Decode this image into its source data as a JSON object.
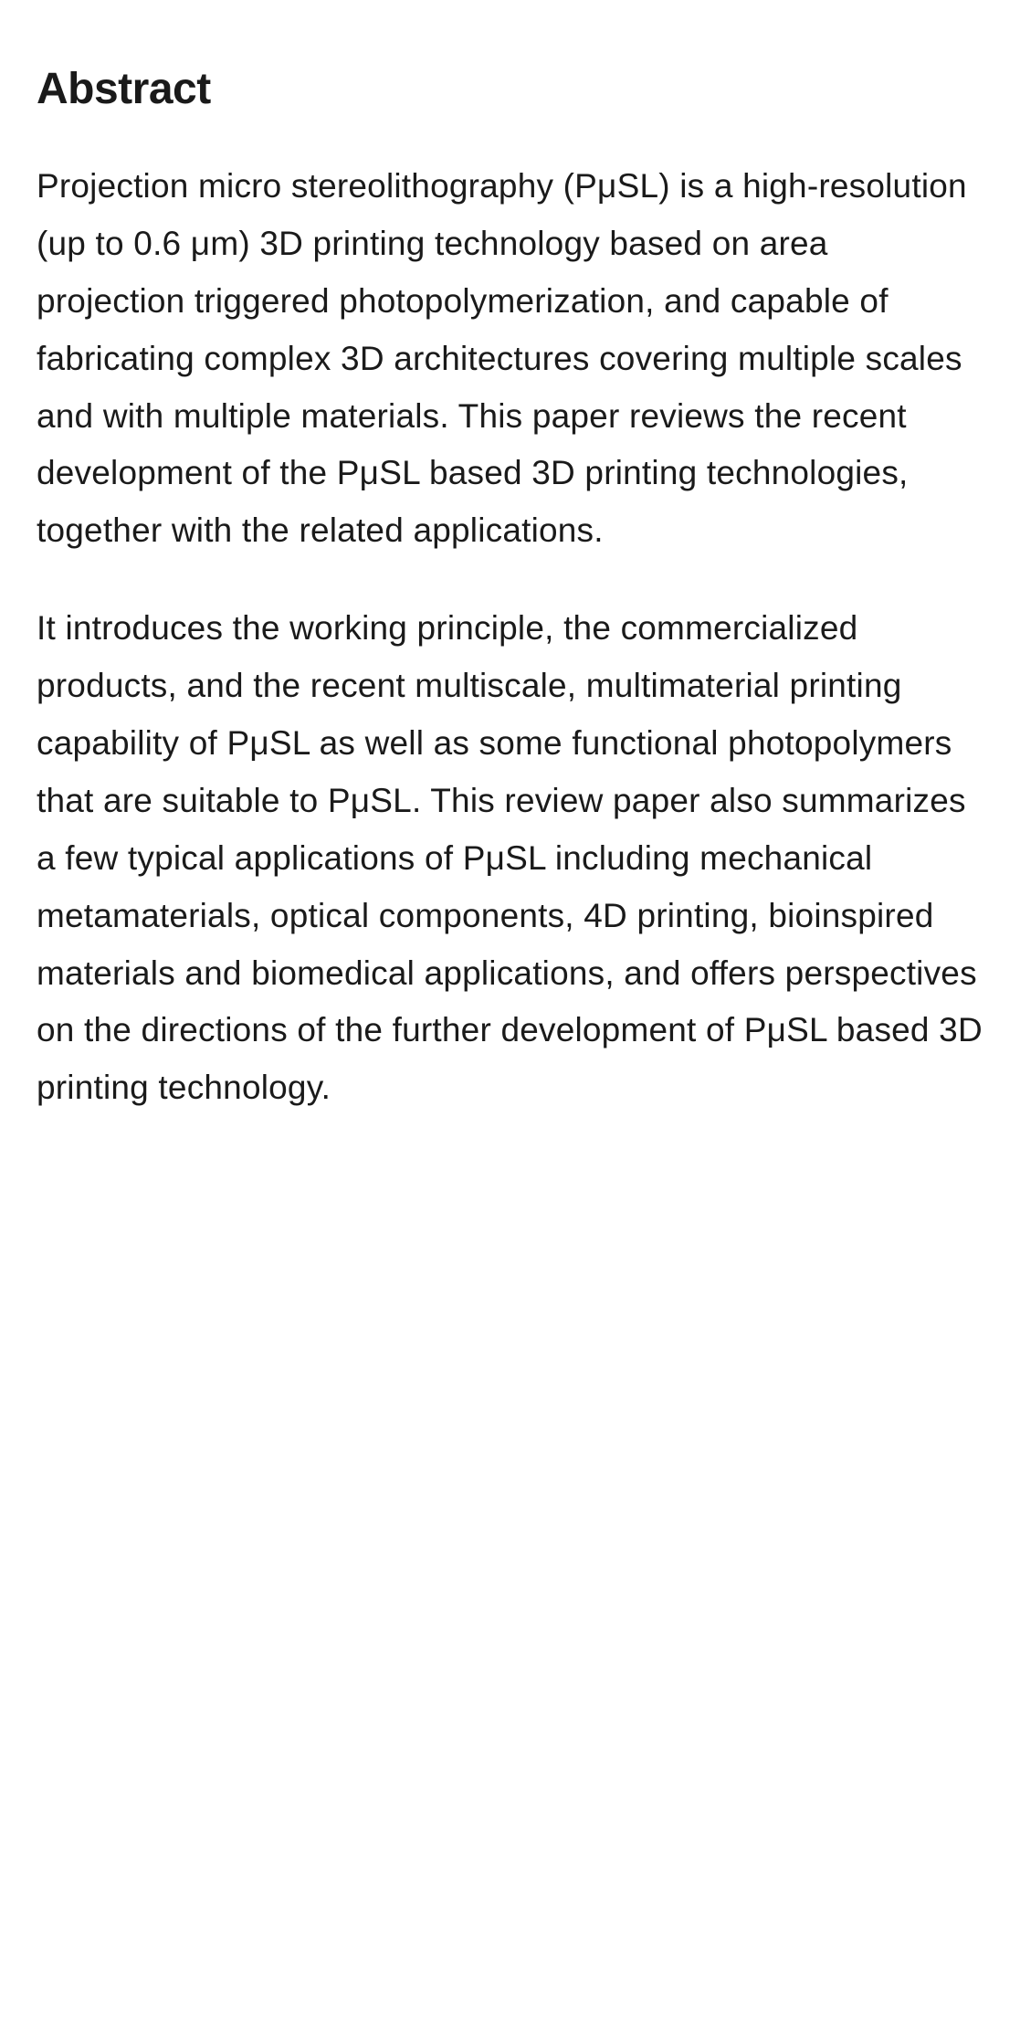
{
  "abstract": {
    "heading": "Abstract",
    "heading_fontsize": 48,
    "heading_fontweight": 700,
    "body_fontsize": 37,
    "body_lineheight": 1.7,
    "text_color": "#1a1a1a",
    "background_color": "#ffffff",
    "paragraphs": [
      "Projection micro stereolithography (PμSL) is a high-resolution (up to 0.6 μm) 3D printing technology based on area projection triggered photopolymerization, and capable of fabricating complex 3D architectures covering multiple scales and with multiple materials. This paper reviews the recent development of the PμSL based 3D printing technologies, together with the related applications.",
      "It introduces the working principle, the commercialized products, and the recent multiscale, multimaterial printing capability of PμSL as well as some functional photopolymers that are suitable to PμSL. This review paper also summarizes a few typical applications of PμSL including mechanical metamaterials, optical components, 4D printing, bioinspired materials and biomedical applications, and offers perspectives on the directions of the further development of PμSL based 3D printing technology."
    ]
  }
}
